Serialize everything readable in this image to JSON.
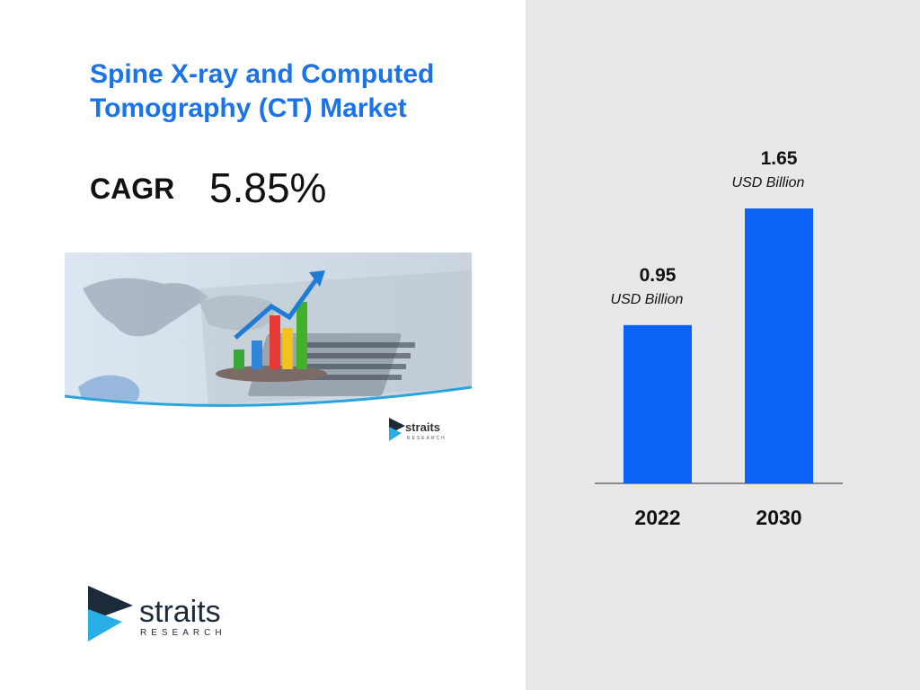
{
  "title": "Spine X-ray and Computed Tomography (CT) Market",
  "cagr": {
    "label": "CAGR",
    "value": "5.85%"
  },
  "brand": {
    "name": "straits",
    "tagline": "RESEARCH"
  },
  "colors": {
    "title": "#1a73e8",
    "bar": "#0b63f6",
    "panel": "#e8e8ea"
  },
  "chart_data": {
    "type": "bar",
    "categories": [
      "2022",
      "2030"
    ],
    "values": [
      0.95,
      1.65
    ],
    "value_labels": [
      "0.95",
      "1.65"
    ],
    "unit_label": "USD Billion",
    "title": "",
    "xlabel": "",
    "ylabel": "",
    "ylim": [
      0,
      1.65
    ],
    "grid": false,
    "legend": "none"
  }
}
